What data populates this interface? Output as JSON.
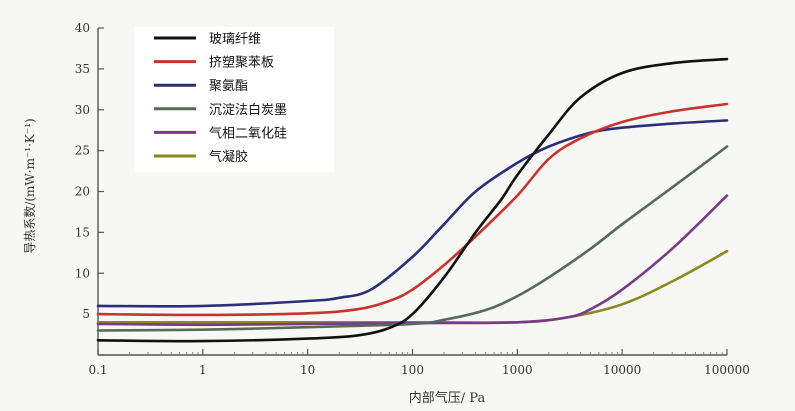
{
  "chart_data": {
    "type": "line",
    "title": "",
    "xlabel": "内部气压/ Pa",
    "ylabel": "导热系数/(mW·m⁻¹·K⁻¹)",
    "x_scale": "log",
    "xlim": [
      0.1,
      100000
    ],
    "ylim": [
      0,
      40
    ],
    "x_ticks": [
      0.1,
      1,
      10,
      100,
      1000,
      10000,
      100000
    ],
    "x_tick_labels": [
      "0.1",
      "1",
      "10",
      "100",
      "1000",
      "10000",
      "100000"
    ],
    "y_ticks": [
      0,
      5,
      10,
      15,
      20,
      25,
      30,
      35,
      40
    ],
    "y_tick_labels": [
      "",
      "5",
      "10",
      "15",
      "20",
      "25",
      "30",
      "35",
      "40"
    ],
    "grid": false,
    "legend_position": "top-left",
    "series": [
      {
        "name": "玻璃纤维",
        "color": "#111111",
        "x": [
          0.1,
          1,
          10,
          30,
          60,
          100,
          200,
          400,
          700,
          1000,
          2000,
          4000,
          10000,
          30000,
          100000
        ],
        "y": [
          1.8,
          1.7,
          2.0,
          2.4,
          3.3,
          5.0,
          9.5,
          15.0,
          19.0,
          22.0,
          27.0,
          31.5,
          34.5,
          35.7,
          36.2
        ]
      },
      {
        "name": "挤塑聚苯板",
        "color": "#c8332b",
        "x": [
          0.1,
          1,
          10,
          30,
          60,
          100,
          200,
          400,
          1000,
          2000,
          4000,
          10000,
          30000,
          100000
        ],
        "y": [
          5.0,
          4.9,
          5.1,
          5.6,
          6.6,
          8.0,
          11.0,
          14.5,
          19.5,
          24.0,
          26.5,
          28.5,
          29.8,
          30.7
        ]
      },
      {
        "name": "聚氨酯",
        "color": "#2b2f78",
        "x": [
          0.1,
          1,
          10,
          20,
          40,
          100,
          200,
          400,
          1000,
          2000,
          5000,
          10000,
          30000,
          100000
        ],
        "y": [
          6.0,
          6.0,
          6.6,
          7.0,
          8.0,
          12.0,
          16.0,
          20.0,
          23.5,
          25.5,
          27.2,
          27.8,
          28.3,
          28.7
        ]
      },
      {
        "name": "沉淀法白炭墨",
        "color": "#556b52",
        "x": [
          0.1,
          1,
          10,
          100,
          200,
          500,
          1000,
          2000,
          5000,
          10000,
          30000,
          100000
        ],
        "y": [
          3.0,
          3.1,
          3.4,
          3.8,
          4.3,
          5.5,
          7.2,
          9.5,
          13.0,
          16.0,
          20.5,
          25.5
        ]
      },
      {
        "name": "气相二氧化硅",
        "color": "#7a3a8a",
        "x": [
          0.1,
          1,
          10,
          100,
          1000,
          3000,
          5000,
          10000,
          30000,
          100000
        ],
        "y": [
          3.8,
          3.7,
          3.8,
          3.9,
          4.0,
          4.6,
          5.6,
          8.0,
          13.0,
          19.5
        ]
      },
      {
        "name": "气凝胶",
        "color": "#8a8a1c",
        "x": [
          0.1,
          1,
          10,
          100,
          1000,
          3000,
          10000,
          30000,
          100000
        ],
        "y": [
          4.0,
          4.0,
          4.0,
          4.0,
          4.0,
          4.6,
          6.2,
          9.0,
          12.7
        ]
      }
    ]
  }
}
